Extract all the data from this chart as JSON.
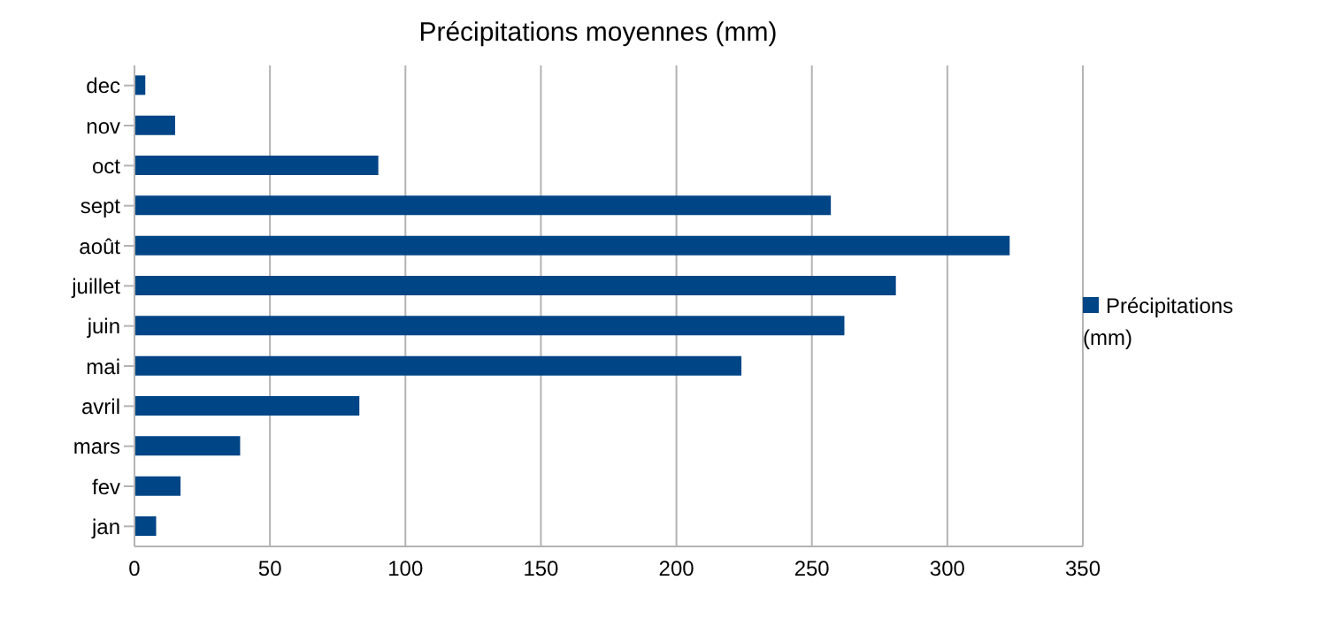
{
  "chart_data": {
    "type": "bar",
    "orientation": "horizontal",
    "title": "Précipitations moyennes (mm)",
    "categories": [
      "dec",
      "nov",
      "oct",
      "sept",
      "août",
      "juillet",
      "juin",
      "mai",
      "avril",
      "mars",
      "fev",
      "jan"
    ],
    "series": [
      {
        "name": "Précipitations (mm)",
        "color": "#004586",
        "values": [
          4,
          15,
          90,
          257,
          323,
          281,
          262,
          224,
          83,
          39,
          17,
          8
        ]
      }
    ],
    "xlim": [
      0,
      350
    ],
    "xticks": [
      0,
      50,
      100,
      150,
      200,
      250,
      300,
      350
    ],
    "grid": "x",
    "legend": "right"
  }
}
